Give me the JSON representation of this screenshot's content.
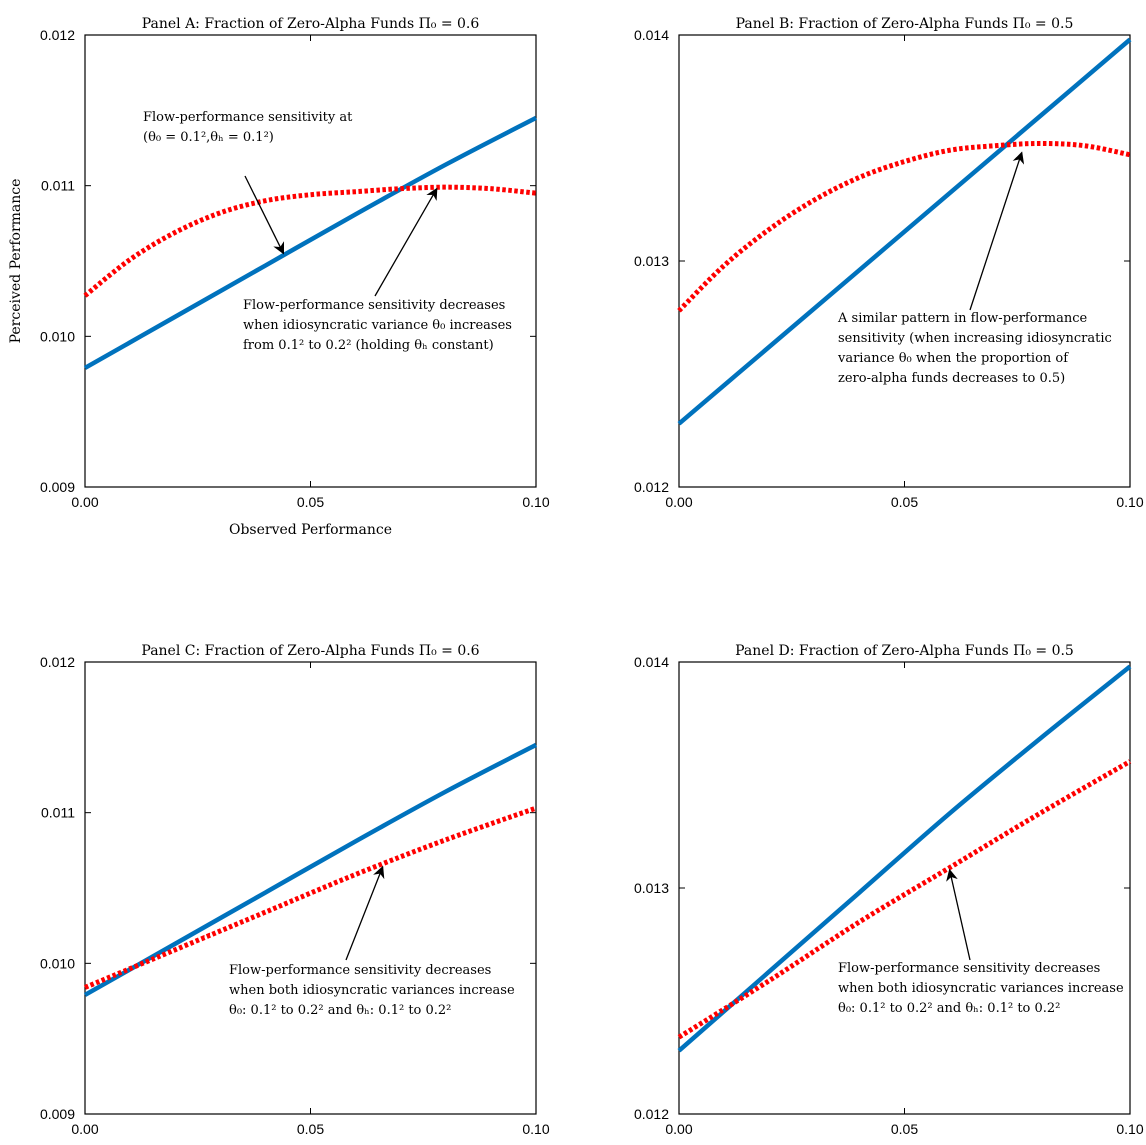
{
  "colors": {
    "solid": "#0072BD",
    "dotted": "#FF0000",
    "axis": "#000000"
  },
  "chart_data": [
    {
      "type": "line",
      "title": "Panel A: Fraction of Zero-Alpha Funds Π₀ = 0.6",
      "xlabel": "Observed Performance",
      "ylabel": "Perceived Performance",
      "xlim": [
        0,
        0.1
      ],
      "ylim": [
        0.009,
        0.012
      ],
      "xticks": [
        "0.00",
        "0.05",
        "0.10"
      ],
      "yticks": [
        "0.009",
        "0.010",
        "0.011",
        "0.012"
      ],
      "series": [
        {
          "style": "solid",
          "x": [
            0,
            0.02,
            0.04,
            0.06,
            0.08,
            0.1
          ],
          "y": [
            0.00979,
            0.01013,
            0.01047,
            0.01081,
            0.01114,
            0.01145
          ]
        },
        {
          "style": "dotted",
          "x": [
            0,
            0.01,
            0.02,
            0.03,
            0.04,
            0.05,
            0.06,
            0.07,
            0.08,
            0.09,
            0.1
          ],
          "y": [
            0.01027,
            0.01051,
            0.01069,
            0.01082,
            0.0109,
            0.01094,
            0.01096,
            0.01098,
            0.01099,
            0.01098,
            0.01095
          ]
        }
      ],
      "annotations": [
        {
          "lines": [
            "Flow-performance sensitivity at",
            "(θ₀ = 0.1²,θₕ = 0.1²)"
          ],
          "arrow_to": [
            0.044,
            0.01055
          ]
        },
        {
          "lines": [
            "Flow-performance sensitivity decreases",
            "when idiosyncratic variance θ₀ increases",
            "from 0.1² to 0.2² (holding θₕ constant)"
          ],
          "arrow_to": [
            0.078,
            0.01098
          ]
        }
      ]
    },
    {
      "type": "line",
      "title": "Panel B: Fraction of Zero-Alpha Funds Π₀ = 0.5",
      "xlabel": "",
      "ylabel": "",
      "xlim": [
        0,
        0.1
      ],
      "ylim": [
        0.012,
        0.014
      ],
      "xticks": [
        "0.00",
        "0.05",
        "0.10"
      ],
      "yticks": [
        "0.012",
        "0.013",
        "0.014"
      ],
      "series": [
        {
          "style": "solid",
          "x": [
            0,
            0.02,
            0.04,
            0.06,
            0.08,
            0.1
          ],
          "y": [
            0.01228,
            0.01262,
            0.01296,
            0.0133,
            0.01364,
            0.01398
          ]
        },
        {
          "style": "dotted",
          "x": [
            0,
            0.01,
            0.02,
            0.03,
            0.04,
            0.05,
            0.06,
            0.07,
            0.08,
            0.09,
            0.1
          ],
          "y": [
            0.01278,
            0.01298,
            0.01314,
            0.01327,
            0.01337,
            0.01344,
            0.01349,
            0.01351,
            0.01352,
            0.01351,
            0.01347
          ]
        }
      ],
      "annotations": [
        {
          "lines": [
            "A similar pattern in flow-performance",
            "sensitivity (when increasing idiosyncratic",
            "variance θ₀ when the proportion of",
            "zero-alpha funds decreases to 0.5)"
          ],
          "arrow_to": [
            0.076,
            0.01348
          ]
        }
      ]
    },
    {
      "type": "line",
      "title": "Panel C: Fraction of Zero-Alpha Funds Π₀ = 0.6",
      "xlabel": "",
      "ylabel": "",
      "xlim": [
        0,
        0.1
      ],
      "ylim": [
        0.009,
        0.012
      ],
      "xticks": [
        "0.00",
        "0.05",
        "0.10"
      ],
      "yticks": [
        "0.009",
        "0.010",
        "0.011",
        "0.012"
      ],
      "series": [
        {
          "style": "solid",
          "x": [
            0,
            0.02,
            0.04,
            0.06,
            0.08,
            0.1
          ],
          "y": [
            0.00979,
            0.01013,
            0.01047,
            0.01081,
            0.01114,
            0.01145
          ]
        },
        {
          "style": "dotted",
          "x": [
            0,
            0.02,
            0.04,
            0.06,
            0.08,
            0.1
          ],
          "y": [
            0.00984,
            0.01009,
            0.01034,
            0.01059,
            0.01082,
            0.01103
          ]
        }
      ],
      "annotations": [
        {
          "lines": [
            "Flow-performance sensitivity decreases",
            "when both idiosyncratic variances increase",
            "θ₀: 0.1² to 0.2² and θₕ: 0.1² to 0.2²"
          ],
          "arrow_to": [
            0.066,
            0.01064
          ]
        }
      ]
    },
    {
      "type": "line",
      "title": "Panel D: Fraction of Zero-Alpha Funds Π₀ = 0.5",
      "xlabel": "",
      "ylabel": "",
      "xlim": [
        0,
        0.1
      ],
      "ylim": [
        0.012,
        0.014
      ],
      "xticks": [
        "0.00",
        "0.05",
        "0.10"
      ],
      "yticks": [
        "0.012",
        "0.013",
        "0.014"
      ],
      "series": [
        {
          "style": "solid",
          "x": [
            0,
            0.02,
            0.04,
            0.06,
            0.08,
            0.1
          ],
          "y": [
            0.01228,
            0.01263,
            0.01298,
            0.01333,
            0.01366,
            0.01398
          ]
        },
        {
          "style": "dotted",
          "x": [
            0,
            0.02,
            0.04,
            0.06,
            0.08,
            0.1
          ],
          "y": [
            0.01234,
            0.01259,
            0.01285,
            0.01309,
            0.01333,
            0.01356
          ]
        }
      ],
      "annotations": [
        {
          "lines": [
            "Flow-performance sensitivity decreases",
            "when both idiosyncratic variances increase",
            "θ₀: 0.1² to 0.2² and θₕ: 0.1² to 0.2²"
          ],
          "arrow_to": [
            0.06,
            0.01308
          ]
        }
      ]
    }
  ]
}
